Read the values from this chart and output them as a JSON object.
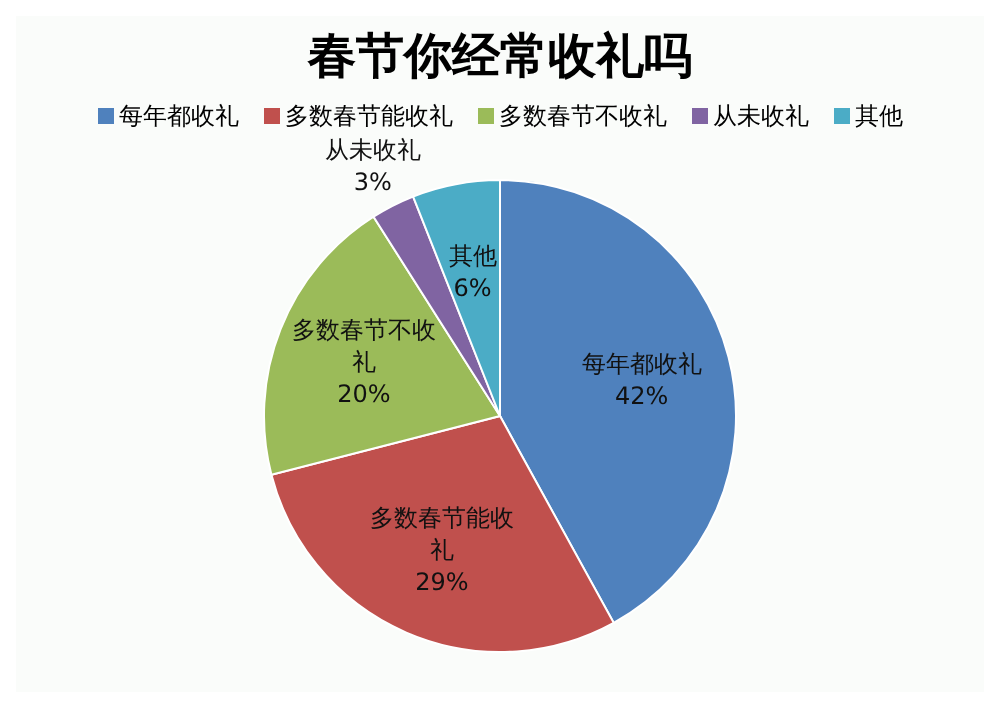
{
  "chart_data": {
    "type": "pie",
    "title": "春节你经常收礼吗",
    "categories": [
      "每年都收礼",
      "多数春节能收礼",
      "多数春节不收礼",
      "从未收礼",
      "其他"
    ],
    "values": [
      42,
      29,
      20,
      3,
      6
    ],
    "colors": [
      "#4f81bd",
      "#c0504d",
      "#9bbb59",
      "#8064a2",
      "#4bacc6"
    ],
    "value_labels": [
      "42%",
      "29%",
      "20%",
      "3%",
      "6%"
    ],
    "legend": "top"
  }
}
